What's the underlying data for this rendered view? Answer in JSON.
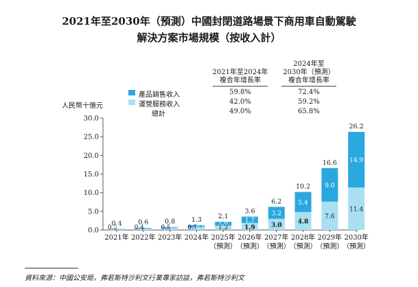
{
  "title_line1": "2021年至2030年（預測）中國封閉道路場景下商用車自動駕駛",
  "title_line2": "解決方案市場規模（按收入計）",
  "unit_label": "人民幣十億元",
  "table": {
    "col1_header": [
      "2021年至2024年",
      "複合年增長率"
    ],
    "col2_header": [
      "2024年至",
      "2030年（預測）",
      "複合年增長率"
    ],
    "rows": [
      {
        "label": "產品銷售收入",
        "c1": "59.8%",
        "c2": "72.4%"
      },
      {
        "label": "運營服務收入",
        "c1": "42.0%",
        "c2": "59.2%"
      },
      {
        "label": "總計",
        "c1": "49.0%",
        "c2": "65.8%"
      }
    ]
  },
  "colors": {
    "product": "#2aa7df",
    "service": "#a9dff3",
    "axis": "#555555"
  },
  "source": "資料來源：中國公安局，弗若斯特沙利文行業專家訪談，弗若斯特沙利文",
  "chart_data": {
    "type": "bar",
    "stacked": true,
    "categories": [
      "2021年",
      "2022年",
      "2023年",
      "2024年",
      "2025年",
      "2026年",
      "2027年",
      "2028年",
      "2029年",
      "2030年"
    ],
    "category_sub": [
      "",
      "",
      "",
      "",
      "（預測）",
      "（預測）",
      "（預測）",
      "（預測）",
      "（預測）",
      "（預測）"
    ],
    "series": [
      {
        "name": "運營服務收入",
        "values": [
          0.2,
          0.4,
          0.5,
          0.7,
          1.2,
          1.9,
          3.0,
          4.8,
          7.6,
          11.4
        ]
      },
      {
        "name": "產品銷售收入",
        "values": [
          0.1,
          0.2,
          0.3,
          0.6,
          1.0,
          1.7,
          3.2,
          5.4,
          9.0,
          14.9
        ]
      }
    ],
    "service_labels": [
      "0.2",
      "0.4",
      "0.5",
      "0.7",
      "1.2",
      "1.9",
      "3.0",
      "4.8",
      "7.6",
      "11.4"
    ],
    "product_labels": [
      "0.1",
      "0.2",
      "0.3",
      "0.6",
      "1.0",
      "1.7",
      "3.2",
      "5.4",
      "9.0",
      "14.9"
    ],
    "totals": [
      "0.4",
      "0.6",
      "0.8",
      "1.3",
      "2.1",
      "3.6",
      "6.2",
      "10.2",
      "16.6",
      "26.2"
    ],
    "ylim": [
      0,
      30
    ],
    "yticks": [
      "0.0",
      "5.0",
      "10.0",
      "15.0",
      "20.0",
      "25.0",
      "30.0"
    ]
  }
}
